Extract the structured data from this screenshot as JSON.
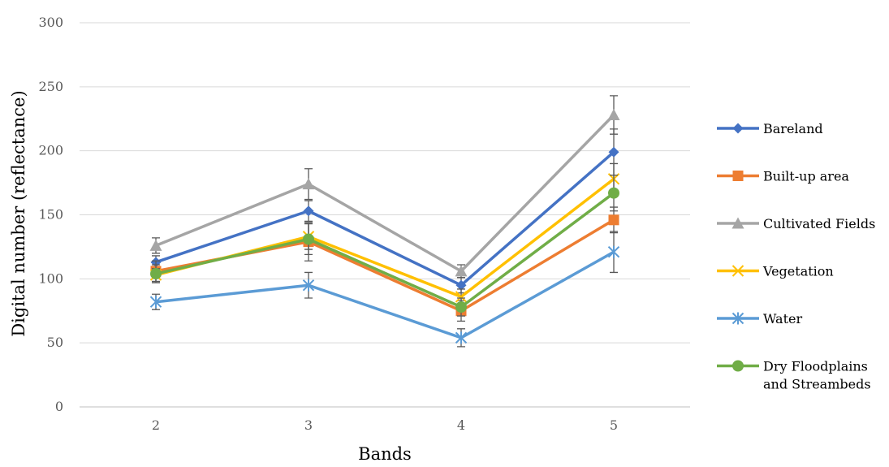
{
  "chart_data": {
    "type": "line",
    "title": "",
    "xlabel": "Bands",
    "ylabel": "Digital number (reflectance)",
    "categories": [
      "2",
      "3",
      "4",
      "5"
    ],
    "ylim": [
      0,
      300
    ],
    "yticks": [
      0,
      50,
      100,
      150,
      200,
      250,
      300
    ],
    "grid": "horizontal",
    "legend_position": "right",
    "series": [
      {
        "name": "Bareland",
        "color": "#4472C4",
        "marker": "diamond",
        "values": [
          113,
          153,
          95,
          199
        ],
        "errors": [
          5,
          8,
          6,
          18
        ]
      },
      {
        "name": "Built-up area",
        "color": "#ED7D31",
        "marker": "square",
        "values": [
          106,
          129,
          75,
          146
        ],
        "errors": [
          8,
          15,
          8,
          10
        ]
      },
      {
        "name": "Cultivated Fields",
        "color": "#A5A5A5",
        "marker": "triangle",
        "values": [
          126,
          174,
          106,
          228
        ],
        "errors": [
          6,
          12,
          5,
          15
        ]
      },
      {
        "name": "Vegetation",
        "color": "#FFC000",
        "marker": "x",
        "values": [
          103,
          133,
          86,
          178
        ],
        "errors": [
          5,
          10,
          6,
          12
        ]
      },
      {
        "name": "Water",
        "color": "#5B9BD5",
        "marker": "asterisk",
        "values": [
          82,
          95,
          54,
          121
        ],
        "errors": [
          6,
          10,
          7,
          16
        ]
      },
      {
        "name": "Dry Floodplains and Streambeds",
        "color": "#70AD47",
        "marker": "circle",
        "values": [
          104,
          131,
          78,
          167
        ],
        "errors": [
          7,
          12,
          7,
          14
        ]
      }
    ]
  }
}
